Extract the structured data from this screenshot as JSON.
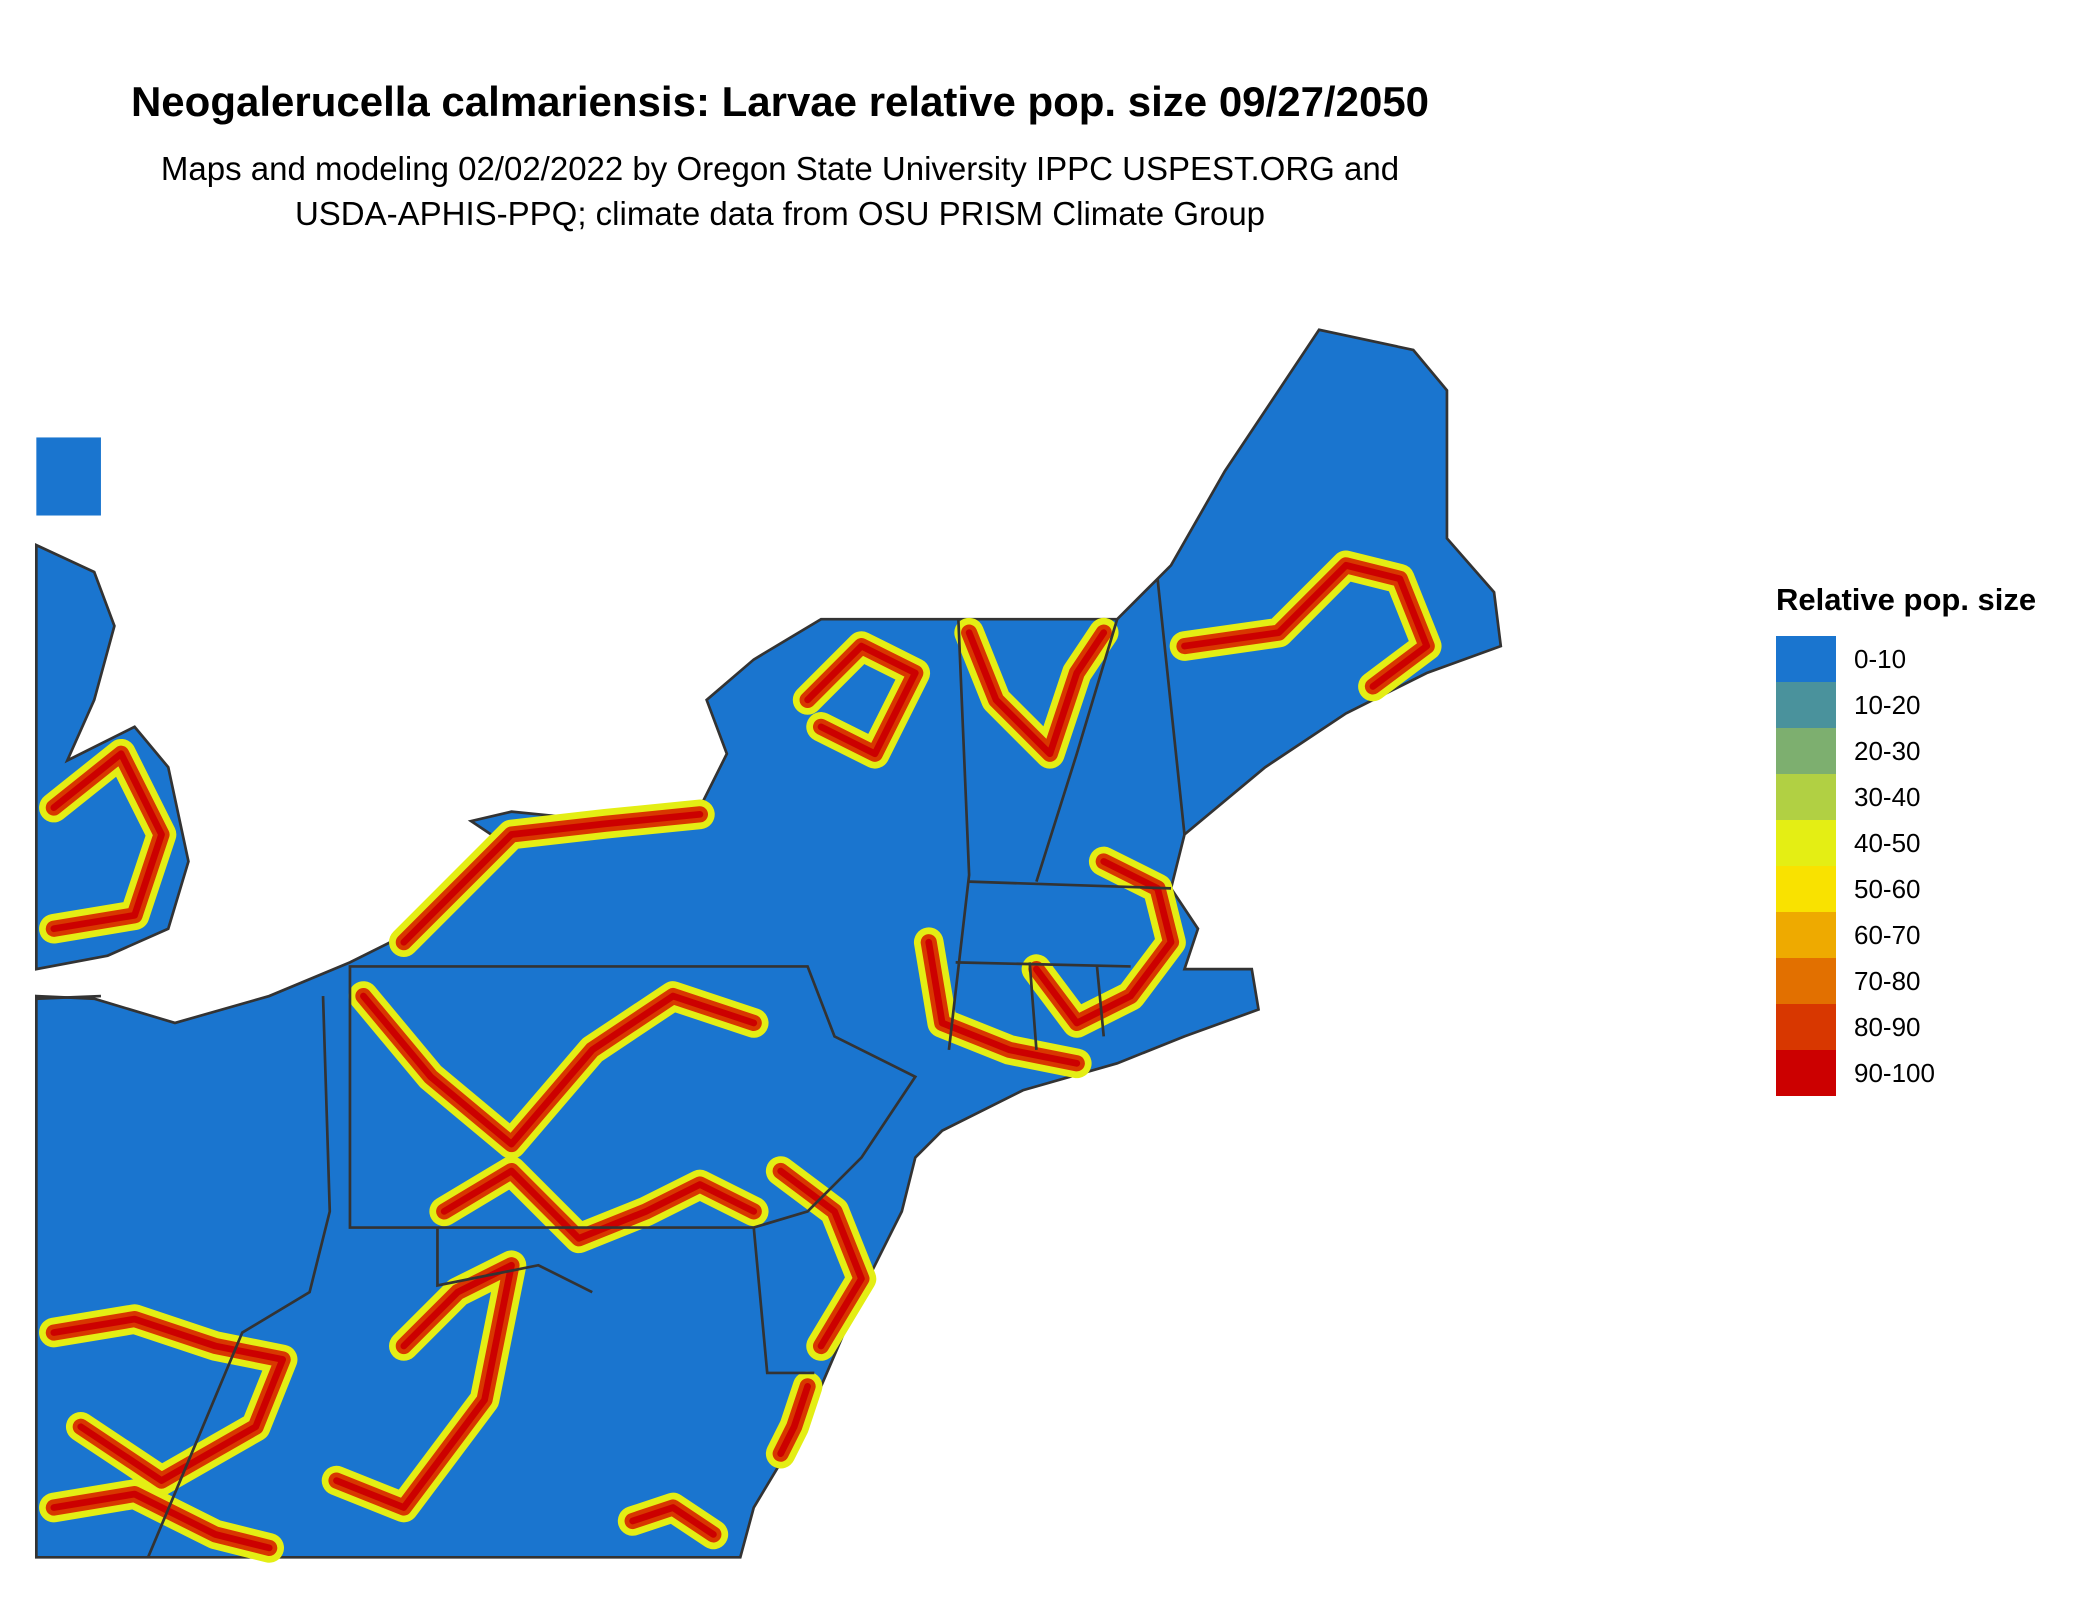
{
  "chart_data": {
    "type": "heatmap",
    "title": "Neogalerucella calmariensis: Larvae relative pop. size 09/27/2050",
    "subtitle_lines": [
      "Maps and modeling 02/02/2022 by Oregon State University IPPC USPEST.ORG and",
      "USDA-APHIS-PPQ; climate data from OSU PRISM Climate Group"
    ],
    "region": "Northeastern United States",
    "legend": {
      "title": "Relative pop. size",
      "placement": "right",
      "bins": [
        {
          "label": "0-10",
          "color": "#1a75cf"
        },
        {
          "label": "10-20",
          "color": "#4a929c"
        },
        {
          "label": "20-30",
          "color": "#7daf6f"
        },
        {
          "label": "30-40",
          "color": "#b1d043"
        },
        {
          "label": "40-50",
          "color": "#e4ee14"
        },
        {
          "label": "50-60",
          "color": "#f9e200"
        },
        {
          "label": "60-70",
          "color": "#eeaa00"
        },
        {
          "label": "70-80",
          "color": "#e27000"
        },
        {
          "label": "80-90",
          "color": "#d83700"
        },
        {
          "label": "90-100",
          "color": "#cc0000"
        }
      ]
    }
  }
}
